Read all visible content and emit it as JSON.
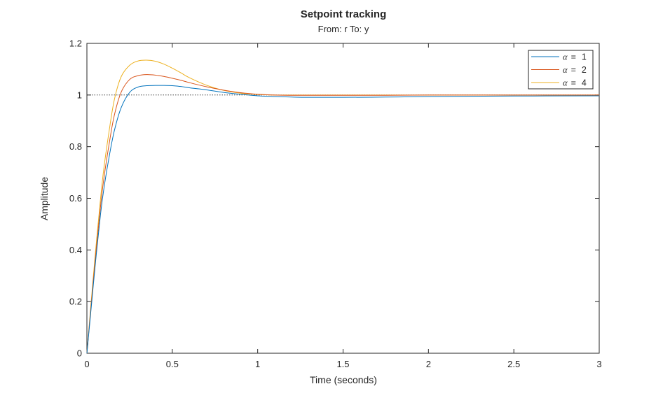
{
  "chart_data": {
    "type": "line",
    "title": "Setpoint tracking",
    "subtitle": "From: r  To: y",
    "xlabel": "Time (seconds)",
    "ylabel": "Amplitude",
    "xlim": [
      0,
      3
    ],
    "ylim": [
      0,
      1.2
    ],
    "xticks": [
      0,
      0.5,
      1,
      1.5,
      2,
      2.5,
      3
    ],
    "xtick_labels": [
      "0",
      "0.5",
      "1",
      "1.5",
      "2",
      "2.5",
      "3"
    ],
    "yticks": [
      0,
      0.2,
      0.4,
      0.6,
      0.8,
      1,
      1.2
    ],
    "ytick_labels": [
      "0",
      "0.2",
      "0.4",
      "0.6",
      "0.8",
      "1",
      "1.2"
    ],
    "grid": false,
    "reference_line": {
      "y": 1,
      "style": "dotted",
      "color": "#262626"
    },
    "legend": {
      "location": "top-right"
    },
    "series": [
      {
        "name": "α  =  1",
        "legend_symbol": "α",
        "legend_value": "1",
        "color": "#0072BD",
        "x": [
          0,
          0.02,
          0.05,
          0.08,
          0.1,
          0.13,
          0.16,
          0.2,
          0.25,
          0.3,
          0.35,
          0.4,
          0.45,
          0.5,
          0.55,
          0.6,
          0.7,
          0.8,
          0.9,
          1.0,
          1.1,
          1.2,
          1.3,
          1.5,
          1.75,
          2.0,
          2.5,
          3.0
        ],
        "y": [
          0,
          0.14,
          0.35,
          0.54,
          0.64,
          0.76,
          0.86,
          0.95,
          1.01,
          1.031,
          1.036,
          1.037,
          1.037,
          1.036,
          1.033,
          1.028,
          1.02,
          1.01,
          1.003,
          0.997,
          0.994,
          0.992,
          0.991,
          0.991,
          0.992,
          0.994,
          0.996,
          0.997
        ]
      },
      {
        "name": "α  =  2",
        "legend_symbol": "α",
        "legend_value": "2",
        "color": "#D95319",
        "x": [
          0,
          0.02,
          0.05,
          0.08,
          0.1,
          0.13,
          0.16,
          0.2,
          0.25,
          0.3,
          0.35,
          0.4,
          0.45,
          0.5,
          0.55,
          0.6,
          0.7,
          0.8,
          0.9,
          1.0,
          1.1,
          1.2,
          1.3,
          1.5,
          1.75,
          2.0,
          2.5,
          3.0
        ],
        "y": [
          0,
          0.15,
          0.37,
          0.57,
          0.68,
          0.81,
          0.92,
          1.01,
          1.06,
          1.075,
          1.079,
          1.077,
          1.072,
          1.065,
          1.057,
          1.048,
          1.032,
          1.019,
          1.009,
          1.003,
          1.0,
          0.999,
          0.999,
          0.999,
          0.999,
          1.0,
          1.0,
          1.0
        ]
      },
      {
        "name": "α  =  4",
        "legend_symbol": "α",
        "legend_value": "4",
        "color": "#EDB120",
        "x": [
          0,
          0.02,
          0.05,
          0.08,
          0.1,
          0.13,
          0.16,
          0.2,
          0.25,
          0.3,
          0.35,
          0.4,
          0.45,
          0.5,
          0.55,
          0.6,
          0.7,
          0.8,
          0.9,
          1.0,
          1.1,
          1.2,
          1.3,
          1.5,
          1.75,
          2.0,
          2.5,
          3.0
        ],
        "y": [
          0,
          0.16,
          0.39,
          0.6,
          0.72,
          0.86,
          0.98,
          1.07,
          1.115,
          1.132,
          1.135,
          1.131,
          1.12,
          1.104,
          1.086,
          1.067,
          1.038,
          1.018,
          1.007,
          1.002,
          1.0,
          1.0,
          1.0,
          1.0,
          1.0,
          1.0,
          1.0,
          1.0
        ]
      }
    ]
  }
}
